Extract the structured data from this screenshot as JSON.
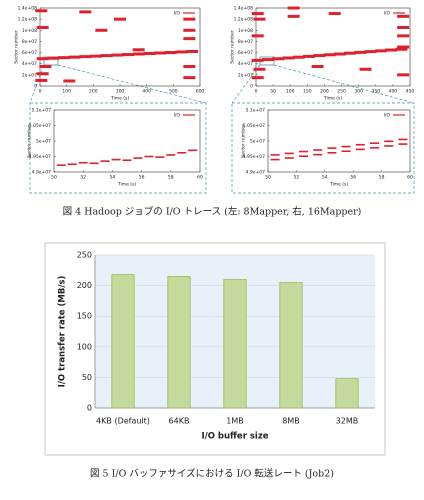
{
  "chart_data": [
    {
      "type": "scatter",
      "ylabel": "Sector number",
      "xlabel": "Time (s)",
      "xlim": [
        0,
        600
      ],
      "xticks": [
        0,
        100,
        200,
        300,
        400,
        500,
        600
      ],
      "ylim": [
        0,
        140000000
      ],
      "yticks": [
        0,
        {
          "value": 20000000,
          "label": "2e+07"
        },
        {
          "value": 40000000,
          "label": "4e+07"
        },
        {
          "value": 60000000,
          "label": "6e+07"
        },
        {
          "value": 80000000,
          "label": "8e+07"
        },
        {
          "value": 100000000,
          "label": "1e+08"
        },
        {
          "value": 120000000,
          "label": "1.2e+08"
        },
        {
          "value": 140000000,
          "label": "1.4e+08"
        }
      ],
      "series": [
        {
          "name": "I/O",
          "color": "#e0202a",
          "x": [
            10,
            50,
            90,
            130,
            170,
            210,
            250,
            290,
            330,
            370,
            410,
            450,
            490,
            530,
            570,
            5,
            10,
            20,
            10,
            5,
            170,
            230,
            300,
            370,
            560,
            560,
            560,
            560,
            560,
            110
          ],
          "y": [
            49000000,
            49900000,
            50900000,
            51800000,
            52700000,
            53600000,
            54600000,
            55500000,
            56400000,
            57400000,
            58300000,
            59200000,
            60100000,
            61100000,
            62000000,
            135000000,
            105000000,
            35000000,
            22000000,
            10000000,
            133000000,
            100000000,
            120000000,
            65000000,
            120000000,
            100000000,
            85000000,
            35000000,
            15000000,
            9000000
          ]
        }
      ]
    },
    {
      "type": "scatter",
      "ylabel": "Sector number",
      "xlabel": "Time (s)",
      "xlim": [
        0,
        450
      ],
      "xticks": [
        0,
        50,
        100,
        150,
        200,
        250,
        300,
        350,
        400,
        450
      ],
      "ylim": [
        0,
        140000000
      ],
      "yticks": [
        0,
        {
          "value": 20000000,
          "label": "2e+07"
        },
        {
          "value": 40000000,
          "label": "4e+07"
        },
        {
          "value": 60000000,
          "label": "6e+07"
        },
        {
          "value": 80000000,
          "label": "8e+07"
        },
        {
          "value": 100000000,
          "label": "1e+08"
        },
        {
          "value": 120000000,
          "label": "1.2e+08"
        },
        {
          "value": 140000000,
          "label": "1.4e+08"
        }
      ],
      "series": [
        {
          "name": "I/O",
          "color": "#e0202a",
          "x": [
            5,
            35,
            65,
            95,
            125,
            155,
            185,
            215,
            245,
            275,
            305,
            335,
            365,
            395,
            425,
            5,
            10,
            5,
            10,
            5,
            110,
            110,
            230,
            180,
            320,
            430,
            430,
            430,
            430,
            430
          ],
          "y": [
            46000000,
            47400000,
            48900000,
            50300000,
            51700000,
            53100000,
            54600000,
            56000000,
            57400000,
            58900000,
            60300000,
            61700000,
            63100000,
            64600000,
            66000000,
            130000000,
            120000000,
            90000000,
            30000000,
            15000000,
            140000000,
            125000000,
            130000000,
            35000000,
            30000000,
            125000000,
            105000000,
            90000000,
            70000000,
            20000000
          ]
        }
      ]
    },
    {
      "type": "scatter",
      "ylabel": "Sector number",
      "xlabel": "Time (s)",
      "xlim": [
        50,
        60
      ],
      "xticks": [
        50,
        52,
        54,
        56,
        58,
        60
      ],
      "ylim": [
        49000000,
        51000000
      ],
      "yticks": [
        {
          "value": 49000000,
          "label": "4.9e+07"
        },
        {
          "value": 49500000,
          "label": "4.95e+07"
        },
        {
          "value": 50000000,
          "label": "5e+07"
        },
        {
          "value": 50500000,
          "label": "5.05e+07"
        },
        {
          "value": 51000000,
          "label": "5.1e+07"
        }
      ],
      "series": [
        {
          "name": "I/O",
          "color": "#e0202a",
          "x": [
            50.5,
            51.25,
            52,
            52.75,
            53.5,
            54.25,
            55,
            55.75,
            56.5,
            57.25,
            58,
            58.75,
            59.5
          ],
          "y": [
            49220000,
            49250000,
            49300000,
            49280000,
            49350000,
            49400000,
            49380000,
            49450000,
            49500000,
            49480000,
            49550000,
            49620000,
            49700000
          ]
        }
      ]
    },
    {
      "type": "scatter",
      "ylabel": "Sector number",
      "xlabel": "Time (s)",
      "xlim": [
        50,
        60
      ],
      "xticks": [
        50,
        52,
        54,
        56,
        58,
        60
      ],
      "ylim": [
        49000000,
        51000000
      ],
      "yticks": [
        {
          "value": 49000000,
          "label": "4.9e+07"
        },
        {
          "value": 49500000,
          "label": "4.95e+07"
        },
        {
          "value": 50000000,
          "label": "5e+07"
        },
        {
          "value": 50500000,
          "label": "5.05e+07"
        },
        {
          "value": 51000000,
          "label": "5.1e+07"
        }
      ],
      "series": [
        {
          "name": "I/O",
          "color": "#e0202a",
          "x": [
            50.5,
            51.5,
            52.5,
            53.5,
            54.5,
            55.5,
            56.5,
            57.5,
            58.5,
            59.5,
            50.5,
            51.5,
            52.5,
            53.5,
            54.5,
            55.5,
            56.5,
            57.5,
            58.5,
            59.5
          ],
          "y": [
            49550000,
            49600000,
            49660000,
            49710000,
            49770000,
            49820000,
            49880000,
            49930000,
            49990000,
            50050000,
            49400000,
            49450000,
            49510000,
            49560000,
            49620000,
            49670000,
            49730000,
            49780000,
            49840000,
            49900000
          ]
        }
      ]
    },
    {
      "type": "bar",
      "ylabel": "I/O transfer rate (MB/s)",
      "xlabel": "I/O buffer size",
      "categories": [
        "4KB (Default)",
        "64KB",
        "1MB",
        "8MB",
        "32MB"
      ],
      "values": [
        218,
        215,
        210,
        205,
        48
      ],
      "color": "#c5d99d",
      "border_color": "#9bbb59",
      "ylim": [
        0,
        250
      ],
      "yticks": [
        0,
        50,
        100,
        150,
        200,
        250
      ],
      "grid": true,
      "background": "#e8f1f9"
    }
  ],
  "figure4_caption": "図 4   Hadoop ジョブの I/O トレース (左: 8Mapper, 右, 16Mapper)",
  "figure5_caption": "図 5   I/O バッファサイズにおける I/O 転送レート (Job2)"
}
